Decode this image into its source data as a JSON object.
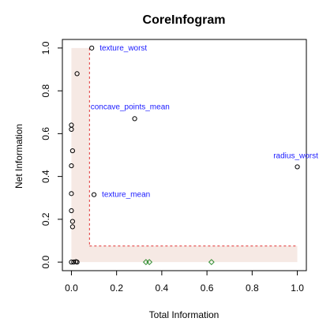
{
  "chart_data": {
    "type": "scatter",
    "title": "CoreInfogram",
    "xlabel": "Total Information",
    "ylabel": "Net Information",
    "xlim": [
      -0.04,
      1.04
    ],
    "ylim": [
      -0.04,
      1.04
    ],
    "xticks": [
      0.0,
      0.2,
      0.4,
      0.6,
      0.8,
      1.0
    ],
    "yticks": [
      0.0,
      0.2,
      0.4,
      0.6,
      0.8,
      1.0
    ],
    "xtick_labels": [
      "0.0",
      "0.2",
      "0.4",
      "0.6",
      "0.8",
      "1.0"
    ],
    "ytick_labels": [
      "0.0",
      "0.2",
      "0.4",
      "0.6",
      "0.8",
      "1.0"
    ],
    "grid": false,
    "thresholds": {
      "x": 0.08,
      "y": 0.075
    },
    "colors": {
      "core": "#000000",
      "other": "#2e8b2e",
      "annotation": "#1a1aff",
      "threshold": "#e03030",
      "shade": "#f6e9e4"
    },
    "points": [
      {
        "x": 0.09,
        "y": 1.0,
        "group": "core",
        "label": "texture_worst"
      },
      {
        "x": 0.025,
        "y": 0.88,
        "group": "core",
        "label": ""
      },
      {
        "x": 0.28,
        "y": 0.67,
        "group": "core",
        "label": "concave_points_mean"
      },
      {
        "x": 0.0,
        "y": 0.64,
        "group": "core",
        "label": ""
      },
      {
        "x": 0.0,
        "y": 0.62,
        "group": "core",
        "label": ""
      },
      {
        "x": 0.005,
        "y": 0.52,
        "group": "core",
        "label": ""
      },
      {
        "x": 0.0,
        "y": 0.45,
        "group": "core",
        "label": ""
      },
      {
        "x": 1.0,
        "y": 0.445,
        "group": "core",
        "label": "radius_worst"
      },
      {
        "x": 0.0,
        "y": 0.32,
        "group": "core",
        "label": ""
      },
      {
        "x": 0.1,
        "y": 0.315,
        "group": "core",
        "label": "texture_mean"
      },
      {
        "x": 0.0,
        "y": 0.24,
        "group": "core",
        "label": ""
      },
      {
        "x": 0.005,
        "y": 0.19,
        "group": "core",
        "label": ""
      },
      {
        "x": 0.005,
        "y": 0.165,
        "group": "core",
        "label": ""
      },
      {
        "x": 0.0,
        "y": 0.0,
        "group": "core",
        "label": ""
      },
      {
        "x": 0.01,
        "y": 0.0,
        "group": "core",
        "label": ""
      },
      {
        "x": 0.02,
        "y": 0.002,
        "group": "core",
        "label": ""
      },
      {
        "x": 0.025,
        "y": 0.0,
        "group": "core",
        "label": ""
      },
      {
        "x": 0.33,
        "y": 0.0,
        "group": "other",
        "label": ""
      },
      {
        "x": 0.345,
        "y": 0.0,
        "group": "other",
        "label": ""
      },
      {
        "x": 0.62,
        "y": 0.0,
        "group": "other",
        "label": ""
      }
    ]
  }
}
